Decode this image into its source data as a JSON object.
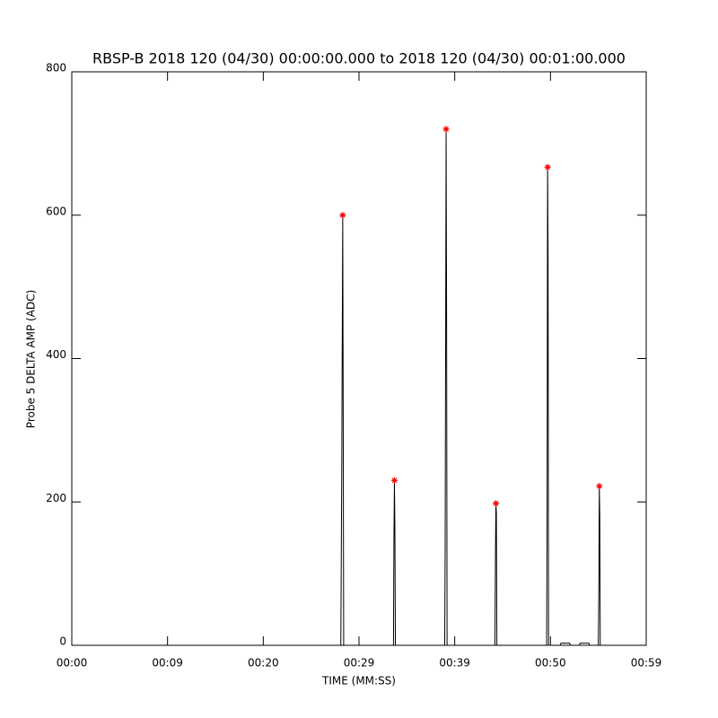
{
  "chart_data": {
    "type": "line",
    "title": "RBSP-B 2018 120 (04/30) 00:00:00.000 to 2018 120 (04/30) 00:01:00.000",
    "x_label": "TIME (MM:SS)",
    "y_label": "Probe 5 DELTA AMP (ADC)",
    "xlim": [
      0,
      60
    ],
    "ylim": [
      0,
      800
    ],
    "xticks": [
      {
        "value": 0,
        "label": "00:00"
      },
      {
        "value": 10,
        "label": "00:09"
      },
      {
        "value": 20,
        "label": "00:20"
      },
      {
        "value": 30,
        "label": "00:29"
      },
      {
        "value": 40,
        "label": "00:39"
      },
      {
        "value": 50,
        "label": "00:50"
      },
      {
        "value": 60,
        "label": "00:59"
      }
    ],
    "yticks": [
      0,
      200,
      400,
      600,
      800
    ],
    "series": [
      {
        "name": "delta amp",
        "color": "#000000",
        "marker": "none",
        "x": [
          0,
          28.1,
          28.2,
          28.3,
          28.35,
          28.4,
          33.6,
          33.65,
          33.7,
          33.75,
          33.8,
          38.95,
          39.0,
          39.1,
          39.15,
          39.2,
          44.2,
          44.25,
          44.3,
          44.35,
          44.4,
          49.6,
          49.65,
          49.7,
          49.75,
          49.8,
          51,
          51.1,
          52,
          52.1,
          53,
          53.1,
          54,
          54.1,
          55.0,
          55.05,
          55.1,
          55.15,
          55.2,
          60
        ],
        "values": [
          0,
          0,
          250,
          600,
          325,
          0,
          0,
          150,
          230,
          160,
          0,
          0,
          135,
          720,
          458,
          0,
          0,
          115,
          198,
          185,
          0,
          0,
          200,
          667,
          545,
          0,
          0,
          3,
          3,
          0,
          0,
          3,
          3,
          0,
          0,
          70,
          222,
          180,
          0,
          0
        ]
      },
      {
        "name": "peaks",
        "color": "#ff0000",
        "marker": "asterisk",
        "x": [
          28.3,
          33.7,
          39.1,
          44.3,
          49.7,
          55.1
        ],
        "values": [
          600,
          230,
          720,
          198,
          667,
          222
        ]
      }
    ]
  }
}
